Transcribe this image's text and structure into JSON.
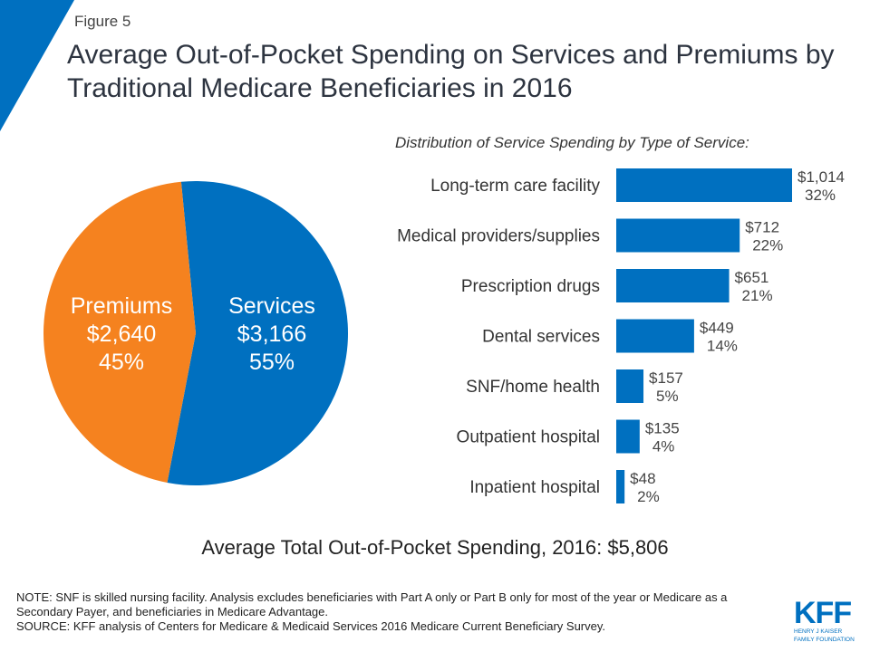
{
  "figure_label": "Figure 5",
  "title": "Average Out-of-Pocket Spending on Services and Premiums by Traditional Medicare Beneficiaries in 2016",
  "colors": {
    "accent": "#0070c0",
    "services": "#0070c0",
    "premiums": "#f5821f"
  },
  "chart_data": [
    {
      "type": "pie",
      "slices": [
        {
          "name": "Services",
          "value": 3166,
          "value_label": "$3,166",
          "percent_label": "55%",
          "color": "#0070c0"
        },
        {
          "name": "Premiums",
          "value": 2640,
          "value_label": "$2,640",
          "percent_label": "45%",
          "color": "#f5821f"
        }
      ]
    },
    {
      "type": "bar",
      "orientation": "horizontal",
      "title": "Distribution of Service Spending by Type of Service:",
      "categories": [
        "Long-term care facility",
        "Medical providers/supplies",
        "Prescription drugs",
        "Dental services",
        "SNF/home health",
        "Outpatient hospital",
        "Inpatient hospital"
      ],
      "values": [
        1014,
        712,
        651,
        449,
        157,
        135,
        48
      ],
      "value_labels": [
        "$1,014",
        "$712",
        "$651",
        "$449",
        "$157",
        "$135",
        "$48"
      ],
      "percent_labels": [
        "32%",
        "22%",
        "21%",
        "14%",
        "5%",
        "4%",
        "2%"
      ],
      "color": "#0070c0"
    }
  ],
  "total": "Average Total Out-of-Pocket Spending, 2016: $5,806",
  "notes": [
    "NOTE: SNF is skilled nursing facility. Analysis excludes beneficiaries with Part A only or Part B only for most of the year or Medicare as a Secondary Payer, and beneficiaries in Medicare Advantage.",
    "SOURCE: KFF analysis of Centers for Medicare & Medicaid Services 2016 Medicare Current Beneficiary Survey."
  ],
  "logo": {
    "text": "KFF",
    "sub1": "HENRY J KAISER",
    "sub2": "FAMILY FOUNDATION"
  }
}
